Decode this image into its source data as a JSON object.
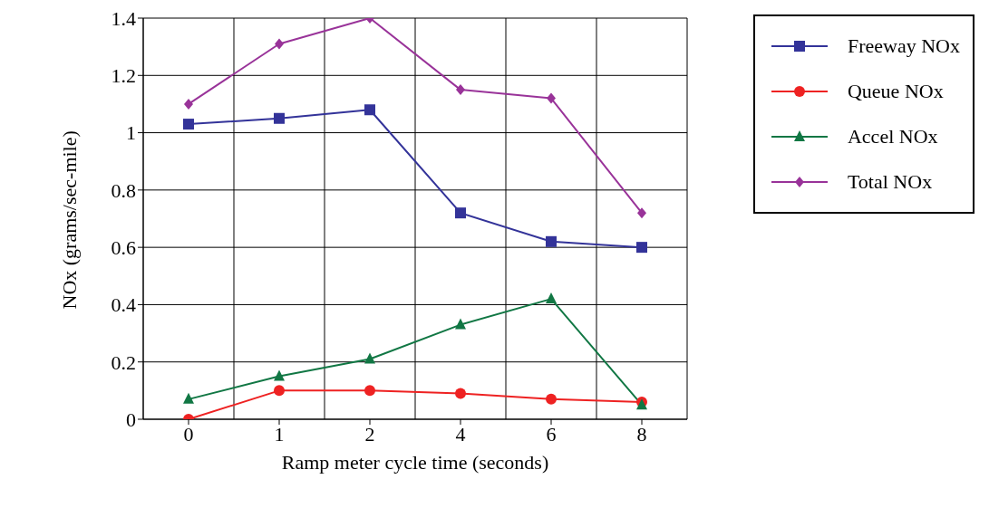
{
  "chart_data": {
    "type": "line",
    "xlabel": "Ramp meter cycle time (seconds)",
    "ylabel": "NOx (grams/sec-mile)",
    "categories": [
      "0",
      "1",
      "2",
      "4",
      "6",
      "8"
    ],
    "series": [
      {
        "name": "Freeway NOx",
        "color": "#333399",
        "marker": "square",
        "values": [
          1.03,
          1.05,
          1.08,
          0.72,
          0.62,
          0.6
        ]
      },
      {
        "name": "Queue NOx",
        "color": "#ee2222",
        "marker": "circle",
        "values": [
          0,
          0.1,
          0.1,
          0.09,
          0.07,
          0.06
        ]
      },
      {
        "name": "Accel NOx",
        "color": "#117744",
        "marker": "triangle",
        "values": [
          0.07,
          0.15,
          0.21,
          0.33,
          0.42,
          0.05
        ]
      },
      {
        "name": "Total NOx",
        "color": "#993399",
        "marker": "diamond",
        "values": [
          1.1,
          1.31,
          1.4,
          1.15,
          1.12,
          0.72
        ]
      }
    ],
    "ylim": [
      0,
      1.4
    ],
    "yticks": [
      0,
      0.2,
      0.4,
      0.6,
      0.8,
      1,
      1.2,
      1.4
    ],
    "grid": true,
    "legend": "top right"
  }
}
